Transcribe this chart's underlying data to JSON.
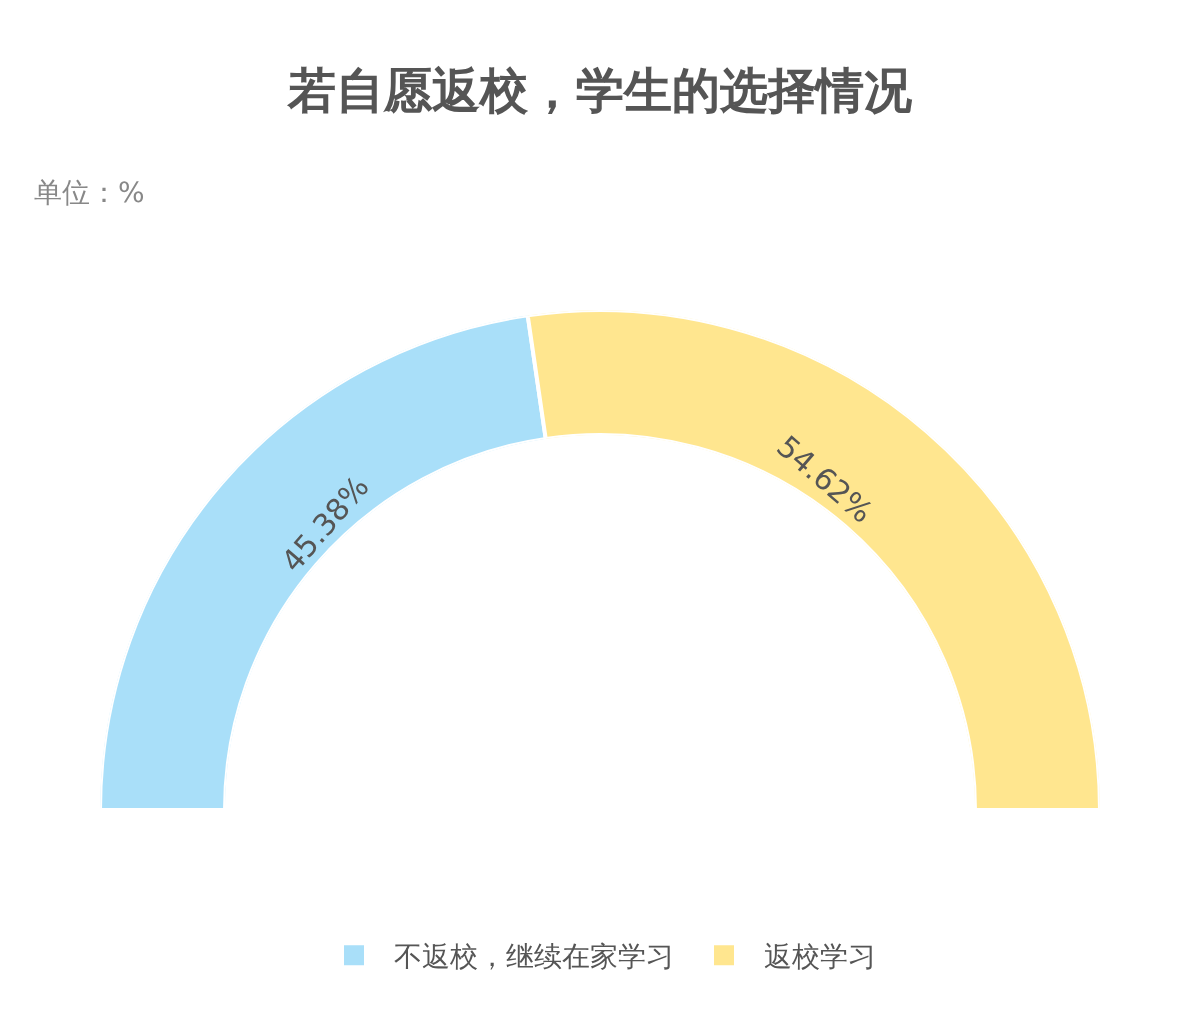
{
  "chart_data": {
    "type": "donut",
    "title": "若自愿返校，学生的选择情况",
    "subtitle": "单位：%",
    "categories": [
      "不返校，继续在家学习",
      "返校学习"
    ],
    "values": [
      45.38,
      54.62
    ],
    "value_labels": [
      "45.38%",
      "54.62%"
    ],
    "colors": [
      "#a9dff9",
      "#ffe68f"
    ],
    "legend": "bottom"
  }
}
